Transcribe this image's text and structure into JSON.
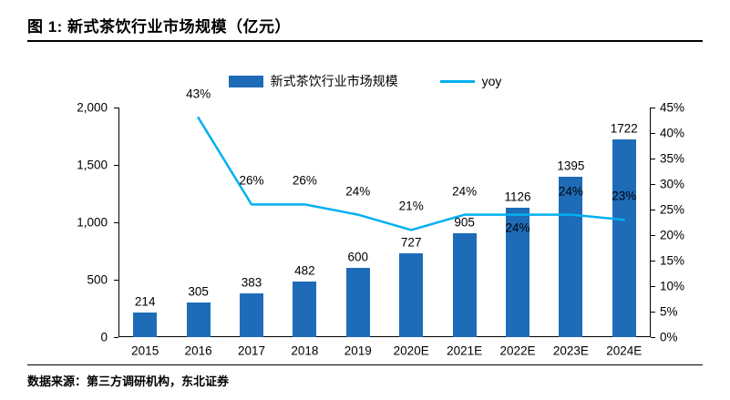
{
  "header": {
    "title": "图 1: 新式茶饮行业市场规模（亿元）"
  },
  "footer": {
    "source": "数据来源：第三方调研机构，东北证券"
  },
  "colors": {
    "bar": "#1E6CB8",
    "line": "#00B0F0",
    "axis": "#000000",
    "text": "#000000"
  },
  "chart_data": {
    "type": "combo",
    "title": "新式茶饮行业市场规模（亿元）",
    "categories": [
      "2015",
      "2016",
      "2017",
      "2018",
      "2019",
      "2020E",
      "2021E",
      "2022E",
      "2023E",
      "2024E"
    ],
    "series": [
      {
        "name": "新式茶饮行业市场规模",
        "type": "bar",
        "axis": "left",
        "color": "#1E6CB8",
        "values": [
          214,
          305,
          383,
          482,
          600,
          727,
          905,
          1126,
          1395,
          1722
        ],
        "labels": [
          "214",
          "305",
          "383",
          "482",
          "600",
          "727",
          "905",
          "1126",
          "1395",
          "1722"
        ]
      },
      {
        "name": "yoy",
        "type": "line",
        "axis": "right",
        "color": "#00B0F0",
        "values": [
          null,
          43,
          26,
          26,
          24,
          21,
          24,
          24,
          24,
          23
        ],
        "labels": [
          null,
          "43%",
          "26%",
          "26%",
          "24%",
          "21%",
          "24%",
          "24%",
          "24%",
          "23%"
        ],
        "label_side": [
          null,
          "above",
          "above",
          "above",
          "above",
          "above",
          "above",
          "below",
          "above",
          "above"
        ]
      }
    ],
    "left_axis": {
      "min": 0,
      "max": 2000,
      "ticks": [
        "0",
        "500",
        "1,000",
        "1,500",
        "2,000"
      ]
    },
    "right_axis": {
      "min": 0,
      "max": 45,
      "ticks": [
        "0%",
        "5%",
        "10%",
        "15%",
        "20%",
        "25%",
        "30%",
        "35%",
        "40%",
        "45%"
      ]
    },
    "legend_position": "top",
    "grid": false
  }
}
